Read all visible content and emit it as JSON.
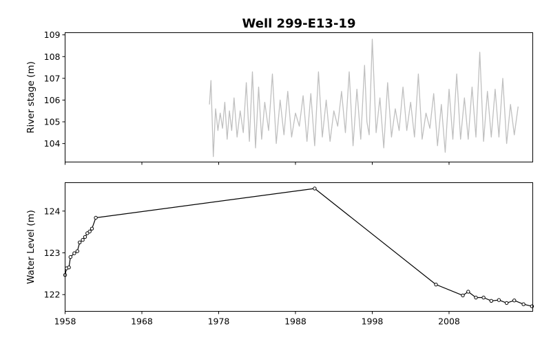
{
  "title": "Well 299-E13-19",
  "chart_data": [
    {
      "type": "line",
      "name": "river-stage-panel",
      "ylabel": "River stage (m)",
      "xlim": [
        1958,
        2018.9
      ],
      "ylim": [
        103.15,
        109.1
      ],
      "yticks": [
        104,
        105,
        106,
        107,
        108,
        109
      ],
      "x_labels_shown": false,
      "series_color": "#bfbfbf",
      "series": [
        {
          "x": [
            1976.8,
            1977.0,
            1977.3,
            1977.6,
            1977.9,
            1978.2,
            1978.5,
            1978.8,
            1979.1,
            1979.4,
            1979.7,
            1980.0,
            1980.4,
            1980.8,
            1981.2,
            1981.6,
            1982.0,
            1982.4,
            1982.8,
            1983.2,
            1983.6,
            1984.0,
            1984.5,
            1985.0,
            1985.5,
            1986.0,
            1986.5,
            1987.0,
            1987.5,
            1988.0,
            1988.5,
            1989.0,
            1989.5,
            1990.0,
            1990.5,
            1991.0,
            1991.5,
            1992.0,
            1992.5,
            1993.0,
            1993.5,
            1994.0,
            1994.5,
            1995.0,
            1995.5,
            1996.0,
            1996.5,
            1997.0,
            1997.3,
            1997.6,
            1998.0,
            1998.5,
            1999.0,
            1999.5,
            2000.0,
            2000.5,
            2001.0,
            2001.5,
            2002.0,
            2002.5,
            2003.0,
            2003.5,
            2004.0,
            2004.5,
            2005.0,
            2005.5,
            2006.0,
            2006.5,
            2007.0,
            2007.5,
            2008.0,
            2008.5,
            2009.0,
            2009.5,
            2010.0,
            2010.5,
            2011.0,
            2011.5,
            2012.0,
            2012.5,
            2013.0,
            2013.5,
            2014.0,
            2014.5,
            2015.0,
            2015.5,
            2016.0,
            2016.5,
            2017.0
          ],
          "y": [
            105.8,
            106.9,
            103.4,
            105.6,
            104.6,
            105.4,
            104.7,
            105.9,
            104.2,
            105.5,
            104.6,
            106.1,
            104.3,
            105.5,
            104.5,
            106.8,
            104.1,
            107.3,
            103.8,
            106.6,
            104.2,
            105.9,
            104.6,
            107.2,
            104.0,
            106.0,
            104.4,
            106.4,
            104.3,
            105.4,
            104.8,
            106.2,
            104.1,
            106.3,
            103.9,
            107.3,
            104.3,
            106.0,
            104.1,
            105.5,
            104.8,
            106.4,
            104.5,
            107.3,
            103.9,
            106.5,
            104.2,
            107.6,
            105.0,
            104.4,
            108.8,
            104.5,
            106.1,
            103.8,
            106.8,
            104.3,
            105.6,
            104.6,
            106.6,
            104.6,
            105.9,
            104.3,
            107.2,
            104.2,
            105.4,
            104.7,
            106.3,
            103.9,
            105.8,
            103.6,
            106.5,
            104.2,
            107.2,
            104.2,
            106.1,
            104.2,
            106.6,
            104.3,
            108.2,
            104.1,
            106.4,
            104.3,
            106.5,
            104.3,
            107.0,
            104.0,
            105.8,
            104.4,
            105.7
          ]
        }
      ]
    },
    {
      "type": "line",
      "name": "water-level-panel",
      "ylabel": "Water Level (m)",
      "xlabel": "",
      "xlim": [
        1958,
        2018.9
      ],
      "ylim": [
        121.6,
        124.68
      ],
      "yticks": [
        122,
        123,
        124
      ],
      "xticks": [
        1958,
        1968,
        1978,
        1988,
        1998,
        2008
      ],
      "x_labels_shown": true,
      "series_color": "#000000",
      "series": [
        {
          "x": [
            1958.0,
            1958.2,
            1958.5,
            1958.7,
            1959.2,
            1959.6,
            1959.9,
            1960.3,
            1960.6,
            1960.9,
            1961.2,
            1961.5,
            1962.0,
            1990.5,
            2006.3,
            2009.8,
            2010.5,
            2011.5,
            2012.5,
            2013.5,
            2014.5,
            2015.5,
            2016.5,
            2017.7,
            2018.8
          ],
          "y": [
            122.47,
            122.63,
            122.65,
            122.9,
            122.99,
            123.04,
            123.25,
            123.31,
            123.38,
            123.47,
            123.51,
            123.58,
            123.84,
            124.54,
            122.24,
            121.98,
            122.07,
            121.93,
            121.93,
            121.85,
            121.87,
            121.8,
            121.86,
            121.77,
            121.72
          ]
        }
      ]
    }
  ]
}
